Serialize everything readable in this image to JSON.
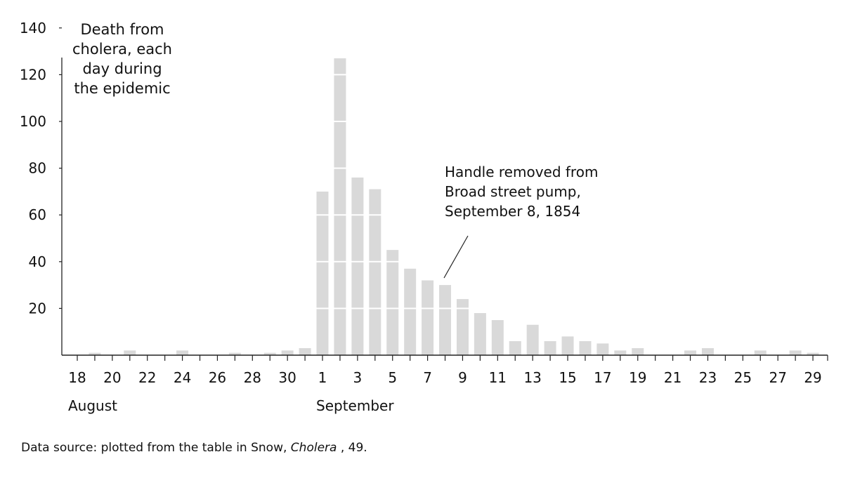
{
  "chart_data": {
    "type": "bar",
    "title": "Death from cholera, each day during the epidemic",
    "title_lines": [
      "Death from",
      "cholera, each",
      "day during",
      "the epidemic"
    ],
    "xlabel": "",
    "ylabel": "",
    "ylim": [
      0,
      140
    ],
    "yticks": [
      20,
      40,
      60,
      80,
      100,
      120,
      140
    ],
    "grid": "white horizontal lines through bars at each y tick",
    "bar_color": "#d9d9d9",
    "months": [
      {
        "label": "August",
        "start_day": "Aug 18"
      },
      {
        "label": "September",
        "start_day": "Sep 1"
      }
    ],
    "x_tick_labels": [
      "18",
      "20",
      "22",
      "24",
      "26",
      "28",
      "30",
      "1",
      "3",
      "5",
      "7",
      "9",
      "11",
      "13",
      "15",
      "17",
      "19",
      "21",
      "23",
      "25",
      "27",
      "29"
    ],
    "categories": [
      "Aug 18",
      "Aug 19",
      "Aug 20",
      "Aug 21",
      "Aug 22",
      "Aug 23",
      "Aug 24",
      "Aug 25",
      "Aug 26",
      "Aug 27",
      "Aug 28",
      "Aug 29",
      "Aug 30",
      "Aug 31",
      "Sep 1",
      "Sep 2",
      "Sep 3",
      "Sep 4",
      "Sep 5",
      "Sep 6",
      "Sep 7",
      "Sep 8",
      "Sep 9",
      "Sep 10",
      "Sep 11",
      "Sep 12",
      "Sep 13",
      "Sep 14",
      "Sep 15",
      "Sep 16",
      "Sep 17",
      "Sep 18",
      "Sep 19",
      "Sep 20",
      "Sep 21",
      "Sep 22",
      "Sep 23",
      "Sep 24",
      "Sep 25",
      "Sep 26",
      "Sep 27",
      "Sep 28",
      "Sep 29"
    ],
    "values": [
      0,
      1,
      0,
      2,
      0,
      0,
      2,
      0,
      0,
      1,
      0,
      1,
      2,
      3,
      70,
      127,
      76,
      71,
      45,
      37,
      32,
      30,
      24,
      18,
      15,
      6,
      13,
      6,
      8,
      6,
      5,
      2,
      3,
      0,
      0,
      2,
      3,
      0,
      0,
      2,
      0,
      2,
      1
    ],
    "annotations": [
      {
        "text": "Handle removed from Broad street pump, September 8, 1854",
        "points_to": "Sep 8"
      }
    ]
  },
  "annotation_lines": [
    "Handle removed from",
    "Broad street pump,",
    "September 8, 1854"
  ],
  "source": {
    "prefix": "Data source: plotted from the table in Snow, ",
    "italic": "Cholera",
    "suffix": " , 49."
  }
}
